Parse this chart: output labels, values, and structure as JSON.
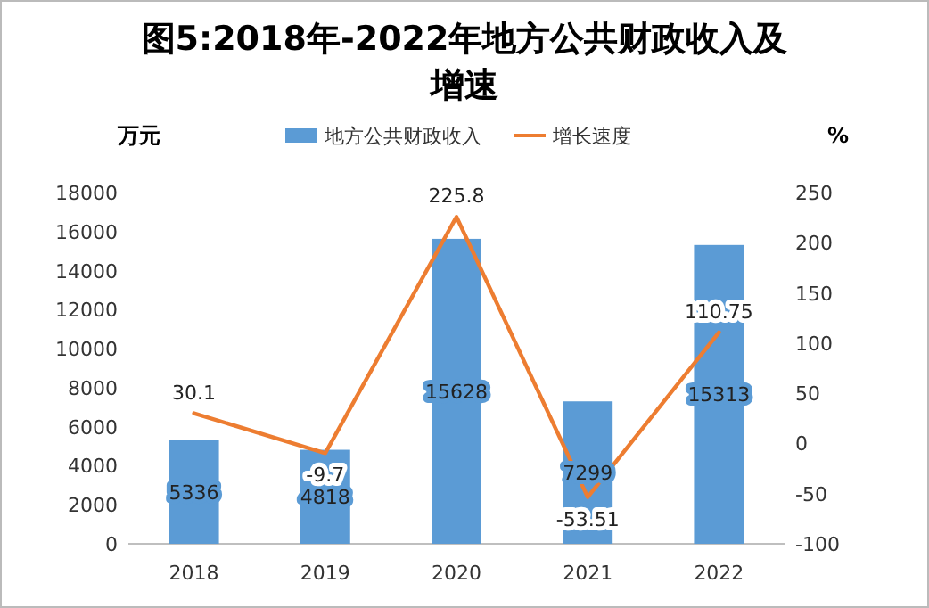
{
  "chart_data": {
    "type": "bar",
    "title": "图5:2018年-2022年地方公共财政收入及增速",
    "ylabel": "万元",
    "y2label": "%",
    "categories": [
      "2018",
      "2019",
      "2020",
      "2021",
      "2022"
    ],
    "series": [
      {
        "name": "地方公共财政收入",
        "color": "#5b9bd5",
        "values": [
          5336,
          4818,
          15628,
          7299,
          15313
        ]
      },
      {
        "name": "增长速度",
        "type": "line",
        "axis": "y2",
        "color": "#ed7d31",
        "values": [
          30.1,
          -9.7,
          225.8,
          -53.51,
          110.75
        ]
      }
    ],
    "ylim": [
      0,
      18000
    ],
    "yticks": [
      0,
      2000,
      4000,
      6000,
      8000,
      10000,
      12000,
      14000,
      16000,
      18000
    ],
    "y2lim": [
      -100,
      250
    ],
    "y2ticks": [
      -100,
      -50,
      0,
      50,
      100,
      150,
      200,
      250
    ],
    "data_labels": true,
    "legend": "top"
  }
}
